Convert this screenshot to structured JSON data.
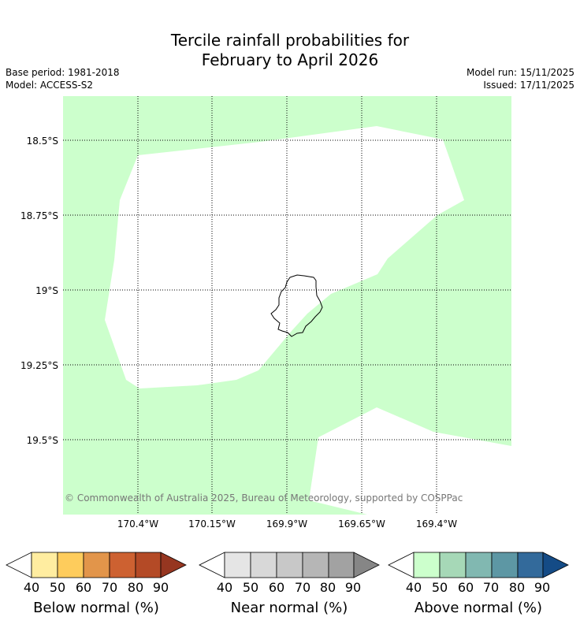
{
  "header": {
    "title_line1": "Tercile rainfall probabilities for",
    "title_line2": "February to April 2026",
    "base_period": "Base period: 1981-2018",
    "model": "Model: ACCESS-S2",
    "model_run": "Model run: 15/11/2025",
    "issued": "Issued: 17/11/2025"
  },
  "map": {
    "latitude_labels": [
      "18.5°S",
      "18.75°S",
      "19°S",
      "19.25°S",
      "19.5°S"
    ],
    "longitude_labels": [
      "170.4°W",
      "170.15°W",
      "169.9°W",
      "169.65°W",
      "169.4°W"
    ],
    "copyright": "© Commonwealth of Australia 2025, Bureau of Meteorology, supported by COSPPac",
    "colors": {
      "above_40_50": "#ccffcc",
      "no_signal": "#ffffff",
      "coastline": "#000000"
    }
  },
  "colorbars": [
    {
      "label": "Below normal (%)",
      "ticks": [
        "40",
        "50",
        "60",
        "70",
        "80",
        "90"
      ],
      "colors": [
        "#ffeda0",
        "#fecc5c",
        "#e2954a",
        "#cd6131",
        "#b44a26",
        "#963620"
      ]
    },
    {
      "label": "Near normal (%)",
      "ticks": [
        "40",
        "50",
        "60",
        "70",
        "80",
        "90"
      ],
      "colors": [
        "#e5e5e5",
        "#d8d8d8",
        "#c8c8c8",
        "#b6b6b6",
        "#a2a2a2",
        "#868686"
      ]
    },
    {
      "label": "Above normal (%)",
      "ticks": [
        "40",
        "50",
        "60",
        "70",
        "80",
        "90"
      ],
      "colors": [
        "#ccffcc",
        "#a6d8b7",
        "#81b8b1",
        "#5d97a4",
        "#336a9b",
        "#144b86"
      ]
    }
  ]
}
